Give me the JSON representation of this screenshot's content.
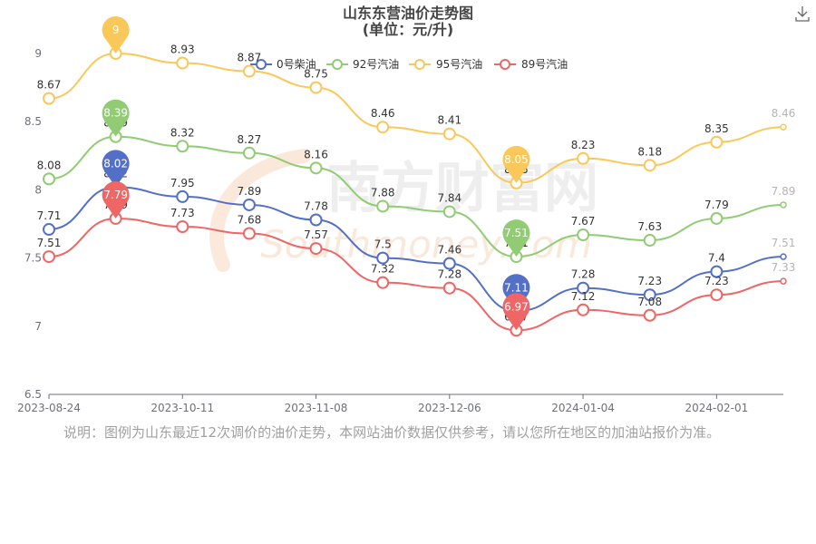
{
  "toolbar": {
    "download_icon": "download-icon"
  },
  "note": "说明：图例为山东最近12次调价的油价走势，本网站油价数据仅供参考，请以您所在地区的加油站报价为准。",
  "watermark": {
    "cn": "南方财富网",
    "en": "Southmoney.com"
  },
  "chart_data": {
    "type": "line",
    "title": "山东东营油价走势图",
    "subtitle": "(单位：元/升)",
    "xlabel": "",
    "ylabel": "",
    "x": [
      "2023-08-24",
      "",
      "2023-10-11",
      "",
      "2023-11-08",
      "",
      "2023-12-06",
      "",
      "2024-01-04",
      "",
      "2024-02-01",
      ""
    ],
    "ylim": [
      6.5,
      9
    ],
    "yticks": [
      6.5,
      7,
      7.5,
      8,
      8.5,
      9
    ],
    "grid": false,
    "smooth": true,
    "legend": "top-center",
    "series": [
      {
        "name": "0号柴油",
        "color": "#5470c6",
        "values": [
          7.71,
          8.02,
          7.95,
          7.89,
          7.78,
          7.5,
          7.46,
          7.11,
          7.28,
          7.23,
          7.4,
          7.51
        ]
      },
      {
        "name": "92号汽油",
        "color": "#91cc75",
        "values": [
          8.08,
          8.39,
          8.32,
          8.27,
          8.16,
          7.88,
          7.84,
          7.51,
          7.67,
          7.63,
          7.79,
          7.89
        ]
      },
      {
        "name": "95号汽油",
        "color": "#fac858",
        "values": [
          8.67,
          9,
          8.93,
          8.87,
          8.75,
          8.46,
          8.41,
          8.05,
          8.23,
          8.18,
          8.35,
          8.46
        ]
      },
      {
        "name": "89号汽油",
        "color": "#ee6666",
        "values": [
          7.51,
          7.79,
          7.73,
          7.68,
          7.57,
          7.32,
          7.28,
          6.97,
          7.12,
          7.08,
          7.23,
          7.33
        ]
      }
    ]
  }
}
